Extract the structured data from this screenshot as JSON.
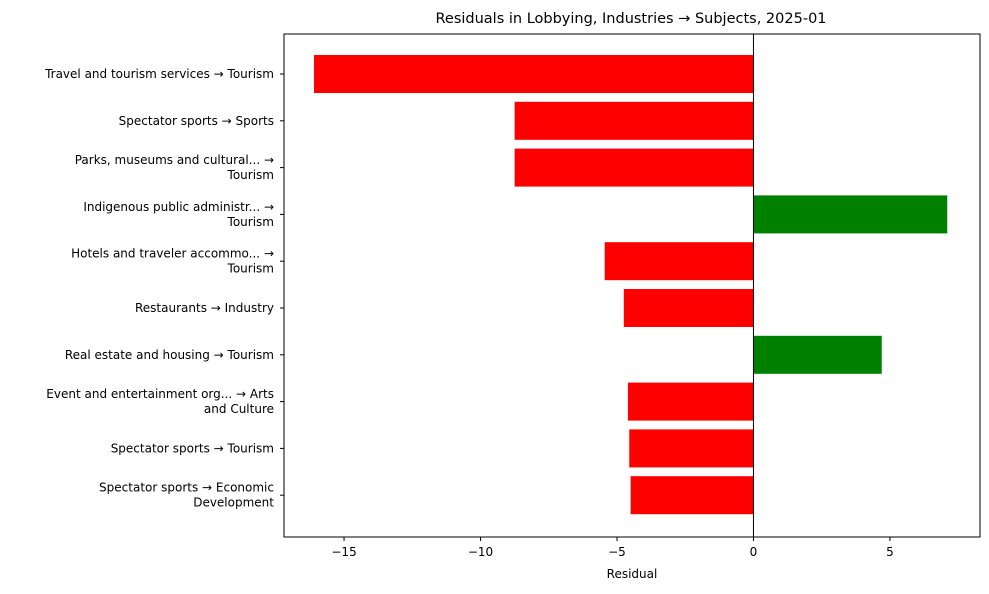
{
  "chart_data": {
    "type": "bar",
    "orientation": "horizontal",
    "title": "Residuals in Lobbying, Industries → Subjects, 2025-01",
    "xlabel": "Residual",
    "ylabel": "",
    "xlim": [
      -17.2,
      8.3
    ],
    "xticks": [
      -15,
      -10,
      -5,
      0,
      5
    ],
    "xtick_labels": [
      "−15",
      "−10",
      "−5",
      "0",
      "5"
    ],
    "zero_line": true,
    "grid": false,
    "legend": null,
    "positive_color": "#008000",
    "negative_color": "#ff0000",
    "categories": [
      [
        "Travel and tourism services → Tourism"
      ],
      [
        "Spectator sports → Sports"
      ],
      [
        "Parks, museums and cultural... →",
        "Tourism"
      ],
      [
        "Indigenous public administr... →",
        "Tourism"
      ],
      [
        "Hotels and traveler accommo... →",
        "Tourism"
      ],
      [
        "Restaurants → Industry"
      ],
      [
        "Real estate and housing → Tourism"
      ],
      [
        "Event and entertainment org... → Arts",
        "and Culture"
      ],
      [
        "Spectator sports → Tourism"
      ],
      [
        "Spectator sports → Economic",
        "Development"
      ]
    ],
    "values": [
      -16.1,
      -8.75,
      -8.75,
      7.1,
      -5.45,
      -4.75,
      4.7,
      -4.6,
      -4.55,
      -4.5
    ]
  }
}
